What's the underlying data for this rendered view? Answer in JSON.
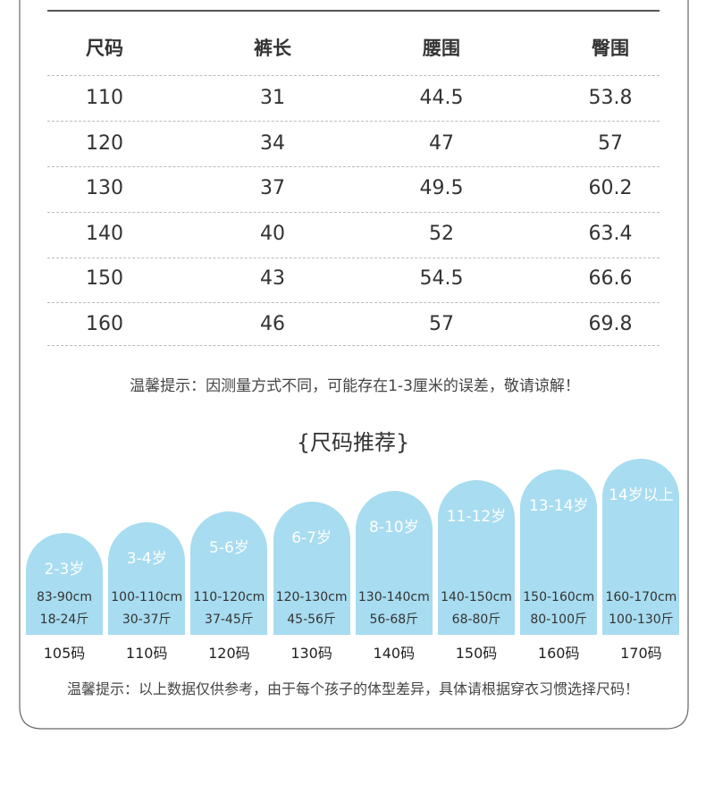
{
  "table": {
    "headers": [
      "尺码",
      "裤长",
      "腰围",
      "臀围"
    ],
    "rows": [
      [
        110,
        31,
        44.5,
        53.8
      ],
      [
        120,
        34,
        47,
        57
      ],
      [
        130,
        37,
        49.5,
        60.2
      ],
      [
        140,
        40,
        52,
        63.4
      ],
      [
        150,
        43,
        54.5,
        66.6
      ],
      [
        160,
        46,
        57,
        69.8
      ]
    ]
  },
  "note": "温馨提示：因测量方式不同，可能存在1-3厘米的误差，敬请谅解！",
  "recommend": {
    "title": "{尺码推荐}",
    "items": [
      {
        "age": "2-3岁",
        "height": "83-90cm",
        "weight": "18-24斤",
        "size": "105码"
      },
      {
        "age": "3-4岁",
        "height": "100-110cm",
        "weight": "30-37斤",
        "size": "110码"
      },
      {
        "age": "5-6岁",
        "height": "110-120cm",
        "weight": "37-45斤",
        "size": "120码"
      },
      {
        "age": "6-7岁",
        "height": "120-130cm",
        "weight": "45-56斤",
        "size": "130码"
      },
      {
        "age": "8-10岁",
        "height": "130-140cm",
        "weight": "56-68斤",
        "size": "140码"
      },
      {
        "age": "11-12岁",
        "height": "140-150cm",
        "weight": "68-80斤",
        "size": "150码"
      },
      {
        "age": "13-14岁",
        "height": "150-160cm",
        "weight": "80-100斤",
        "size": "160码"
      },
      {
        "age": "14岁以上",
        "height": "160-170cm",
        "weight": "100-130斤",
        "size": "170码"
      }
    ]
  },
  "footer_note": "温馨提示：以上数据仅供参考，由于每个孩子的体型差异，具体请根据穿衣习惯选择尺码！"
}
